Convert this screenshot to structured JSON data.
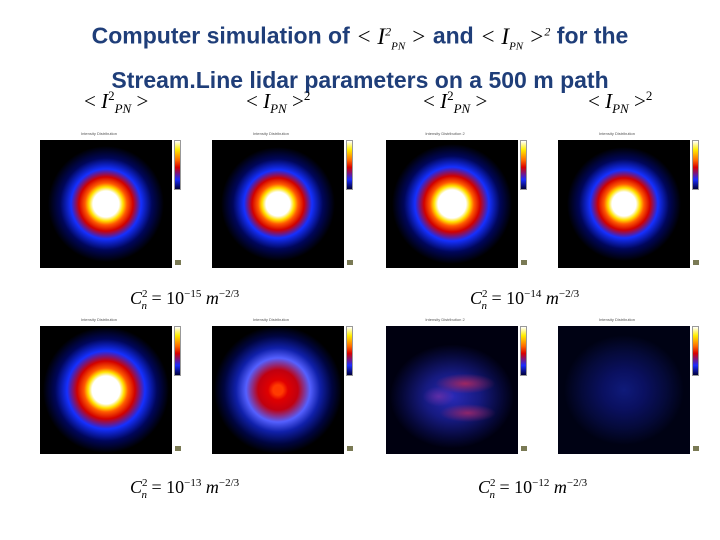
{
  "title": {
    "line1_prefix": "Computer simulation of",
    "line1_and": "and",
    "line1_suffix": "for the",
    "line2": "Stream.Line lidar parameters on a 500 m path"
  },
  "quantities": {
    "mean_sq": "< I²PN >",
    "sq_mean": "< IPN >²"
  },
  "cn_labels": [
    {
      "prefix": "C",
      "sub": "n",
      "sup": "2",
      "eq": "= 10",
      "exp": "−15",
      "unit": "m",
      "unit_exp": "−2/3"
    },
    {
      "prefix": "C",
      "sub": "n",
      "sup": "2",
      "eq": "= 10",
      "exp": "−14",
      "unit": "m",
      "unit_exp": "−2/3"
    },
    {
      "prefix": "C",
      "sub": "n",
      "sup": "2",
      "eq": "= 10",
      "exp": "−13",
      "unit": "m",
      "unit_exp": "−2/3"
    },
    {
      "prefix": "C",
      "sub": "n",
      "sup": "2",
      "eq": "= 10",
      "exp": "−12",
      "unit": "m",
      "unit_exp": "−2/3"
    }
  ],
  "panels": [
    {
      "row": 0,
      "col": 0,
      "kind": "spot",
      "title": "Intensity Distribution"
    },
    {
      "row": 0,
      "col": 1,
      "kind": "spot",
      "title": "Intensity Distribution"
    },
    {
      "row": 0,
      "col": 2,
      "kind": "spot",
      "title": "Intensity Distribution 2"
    },
    {
      "row": 0,
      "col": 3,
      "kind": "spot",
      "title": "Intensity Distribution"
    },
    {
      "row": 1,
      "col": 0,
      "kind": "spot",
      "title": "Intensity Distribution"
    },
    {
      "row": 1,
      "col": 1,
      "kind": "dim-spot",
      "title": "Intensity Distribution"
    },
    {
      "row": 1,
      "col": 2,
      "kind": "speckle",
      "title": "Intensity Distribution 2"
    },
    {
      "row": 1,
      "col": 3,
      "kind": "faint",
      "title": "Intensity Distribution"
    }
  ],
  "colors": {
    "title": "#1f3e79"
  }
}
